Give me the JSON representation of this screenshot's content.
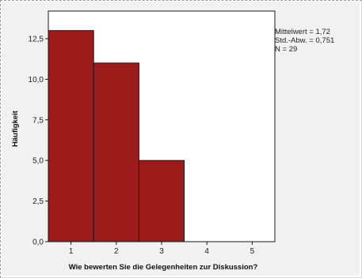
{
  "chart_data": {
    "type": "bar",
    "title": "",
    "xlabel": "Wie bewerten Sie die Gelegenheiten zur Diskussion?",
    "ylabel": "Häufigkeit",
    "x_ticks": [
      "1",
      "2",
      "3",
      "4",
      "5"
    ],
    "y_ticks": [
      "0,0",
      "2,5",
      "5,0",
      "7,5",
      "10,0",
      "12,5"
    ],
    "xlim": [
      0.5,
      5.5
    ],
    "ylim": [
      0,
      14.2
    ],
    "bars": [
      {
        "x_start": 0.5,
        "x_end": 1.5,
        "value": 13
      },
      {
        "x_start": 1.5,
        "x_end": 2.5,
        "value": 11
      },
      {
        "x_start": 2.5,
        "x_end": 3.5,
        "value": 5
      }
    ],
    "stats": {
      "mean": "Mittelwert = 1,72",
      "std": "Std.-Abw. = 0,751",
      "n": "N = 29"
    },
    "grid": false,
    "legend": "none",
    "bar_color": "#9c1c1c",
    "bar_edge_color": "#1a1a1a",
    "plot_background": "#ffffff",
    "outer_background": "#f1f1f1"
  }
}
